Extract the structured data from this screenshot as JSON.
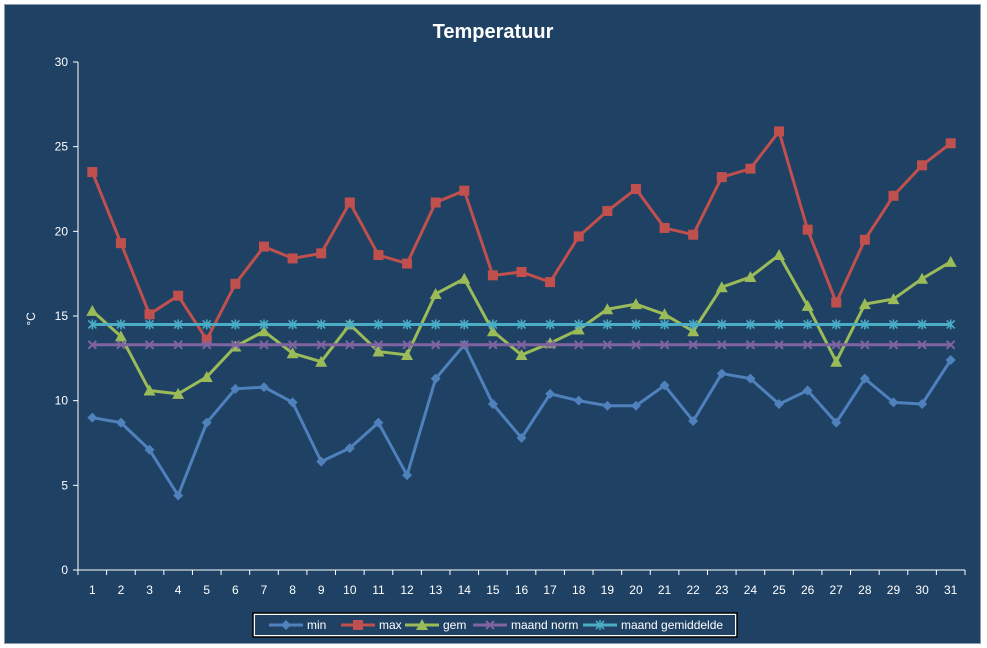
{
  "chart_data": {
    "type": "line",
    "title": "Temperatuur",
    "xlabel": "",
    "ylabel": "°C",
    "ylim": [
      0,
      30
    ],
    "yticks": [
      "0",
      "5",
      "10",
      "15",
      "20",
      "25",
      "30"
    ],
    "grid": false,
    "legend_position": "bottom",
    "categories": [
      "1",
      "2",
      "3",
      "4",
      "5",
      "6",
      "7",
      "8",
      "9",
      "10",
      "11",
      "12",
      "13",
      "14",
      "15",
      "16",
      "17",
      "18",
      "19",
      "20",
      "21",
      "22",
      "23",
      "24",
      "25",
      "26",
      "27",
      "28",
      "29",
      "30",
      "31"
    ],
    "series": [
      {
        "name": "min",
        "color": "#4f81bd",
        "marker": "diamond",
        "values": [
          9.0,
          8.7,
          7.1,
          4.4,
          8.7,
          10.7,
          10.8,
          9.9,
          6.4,
          7.2,
          8.7,
          5.6,
          11.3,
          13.3,
          9.8,
          7.8,
          10.4,
          10.0,
          9.7,
          9.7,
          10.9,
          8.8,
          11.6,
          11.3,
          9.8,
          10.6,
          8.7,
          11.3,
          9.9,
          9.8,
          12.4
        ]
      },
      {
        "name": "max",
        "color": "#c0504d",
        "marker": "square",
        "values": [
          23.5,
          19.3,
          15.1,
          16.2,
          13.6,
          16.9,
          19.1,
          18.4,
          18.7,
          21.7,
          18.6,
          18.1,
          21.7,
          22.4,
          17.4,
          17.6,
          17.0,
          19.7,
          21.2,
          22.5,
          20.2,
          19.8,
          23.2,
          23.7,
          25.9,
          20.1,
          15.8,
          19.5,
          22.1,
          23.9,
          25.2
        ]
      },
      {
        "name": "gem",
        "color": "#9bbb59",
        "marker": "triangle",
        "values": [
          15.3,
          13.8,
          10.6,
          10.4,
          11.4,
          13.2,
          14.1,
          12.8,
          12.3,
          14.5,
          12.9,
          12.7,
          16.3,
          17.2,
          14.1,
          12.7,
          13.4,
          14.2,
          15.4,
          15.7,
          15.1,
          14.1,
          16.7,
          17.3,
          18.6,
          15.6,
          12.3,
          15.7,
          16.0,
          17.2,
          18.2
        ]
      },
      {
        "name": "maand norm",
        "color": "#8064a2",
        "marker": "x",
        "values": [
          13.3,
          13.3,
          13.3,
          13.3,
          13.3,
          13.3,
          13.3,
          13.3,
          13.3,
          13.3,
          13.3,
          13.3,
          13.3,
          13.3,
          13.3,
          13.3,
          13.3,
          13.3,
          13.3,
          13.3,
          13.3,
          13.3,
          13.3,
          13.3,
          13.3,
          13.3,
          13.3,
          13.3,
          13.3,
          13.3,
          13.3
        ]
      },
      {
        "name": "maand gemiddelde",
        "color": "#4bacc6",
        "marker": "star",
        "values": [
          14.5,
          14.5,
          14.5,
          14.5,
          14.5,
          14.5,
          14.5,
          14.5,
          14.5,
          14.5,
          14.5,
          14.5,
          14.5,
          14.5,
          14.5,
          14.5,
          14.5,
          14.5,
          14.5,
          14.5,
          14.5,
          14.5,
          14.5,
          14.5,
          14.5,
          14.5,
          14.5,
          14.5,
          14.5,
          14.5,
          14.5
        ]
      }
    ],
    "colors": {
      "background": "#1f4164",
      "axis": "#ffffff",
      "text": "#ffffff",
      "legend_background": "#ffffff"
    }
  }
}
